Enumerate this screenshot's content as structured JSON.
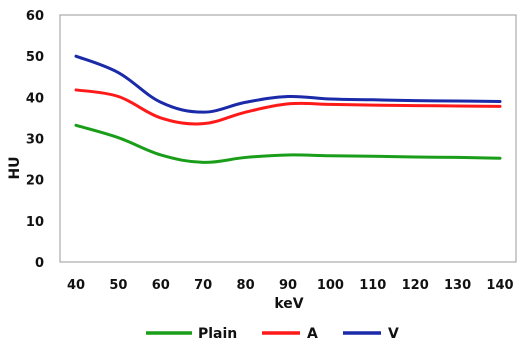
{
  "chart_data": {
    "type": "line",
    "title": "",
    "xlabel": "keV",
    "ylabel": "HU",
    "x": [
      40,
      50,
      60,
      70,
      80,
      90,
      100,
      110,
      120,
      130,
      140
    ],
    "ylim": [
      0,
      60
    ],
    "yticks": [
      0,
      10,
      20,
      30,
      40,
      50,
      60
    ],
    "grid": false,
    "legend": "bottom",
    "series": [
      {
        "name": "Plain",
        "color": "#1a9e1a",
        "values": [
          33.2,
          30.2,
          26.0,
          24.2,
          25.4,
          26.0,
          25.8,
          25.7,
          25.5,
          25.4,
          25.2
        ]
      },
      {
        "name": "A",
        "color": "#ff1a1a",
        "values": [
          41.8,
          40.2,
          35.0,
          33.6,
          36.4,
          38.4,
          38.3,
          38.1,
          38.0,
          37.9,
          37.8
        ]
      },
      {
        "name": "V",
        "color": "#1a2aa8",
        "values": [
          50.0,
          46.0,
          38.8,
          36.4,
          38.8,
          40.2,
          39.6,
          39.4,
          39.2,
          39.1,
          39.0
        ]
      }
    ]
  }
}
